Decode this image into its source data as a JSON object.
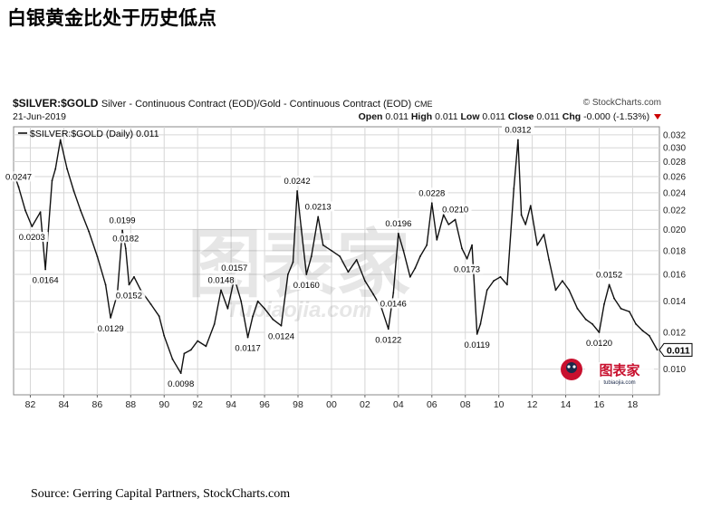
{
  "page_title": "白银黄金比处于历史低点",
  "header": {
    "symbol": "$SILVER:$GOLD",
    "description": "Silver - Continuous Contract (EOD)/Gold - Continuous Contract (EOD)",
    "exchange": "CME",
    "brand": "© StockCharts.com",
    "date": "21-Jun-2019",
    "open_label": "Open",
    "open": "0.011",
    "high_label": "High",
    "high": "0.011",
    "low_label": "Low",
    "low": "0.011",
    "close_label": "Close",
    "close": "0.011",
    "chg_label": "Chg",
    "chg": "-0.000 (-1.53%)"
  },
  "legend": "$SILVER:$GOLD (Daily) 0.011",
  "watermark": "图表家",
  "watermark_url": "Tubiaojia.com",
  "logo_url": "tubiaojia.com",
  "source": "Source: Gerring Capital Partners, StockCharts.com",
  "chart_data": {
    "type": "line",
    "title": "",
    "series": [
      {
        "name": "$SILVER:$GOLD (Daily)",
        "x": [
          1981.0,
          1981.3,
          1981.7,
          1982.1,
          1982.6,
          1982.9,
          1983.3,
          1983.5,
          1983.8,
          1984.2,
          1984.6,
          1985.0,
          1985.5,
          1986.0,
          1986.5,
          1986.8,
          1987.2,
          1987.5,
          1987.7,
          1987.9,
          1988.2,
          1988.6,
          1989.2,
          1989.7,
          1990.0,
          1990.5,
          1991.0,
          1991.2,
          1991.6,
          1992.0,
          1992.5,
          1993.0,
          1993.4,
          1993.8,
          1994.2,
          1994.6,
          1995.0,
          1995.3,
          1995.6,
          1996.0,
          1996.5,
          1997.0,
          1997.4,
          1997.7,
          1997.95,
          1998.2,
          1998.5,
          1998.8,
          1999.2,
          1999.5,
          2000.0,
          2000.5,
          2001.0,
          2001.5,
          2002.0,
          2002.5,
          2003.0,
          2003.4,
          2003.7,
          2004.0,
          2004.3,
          2004.7,
          2005.0,
          2005.3,
          2005.7,
          2006.0,
          2006.3,
          2006.7,
          2007.0,
          2007.4,
          2007.8,
          2008.1,
          2008.4,
          2008.7,
          2008.9,
          2009.3,
          2009.7,
          2010.1,
          2010.5,
          2010.9,
          2011.15,
          2011.35,
          2011.6,
          2011.9,
          2012.3,
          2012.7,
          2013.0,
          2013.4,
          2013.8,
          2014.2,
          2014.7,
          2015.2,
          2015.6,
          2016.0,
          2016.3,
          2016.6,
          2016.9,
          2017.3,
          2017.8,
          2018.2,
          2018.6,
          2019.0,
          2019.47
        ],
        "values": [
          0.0265,
          0.0247,
          0.022,
          0.0203,
          0.0218,
          0.0164,
          0.0255,
          0.027,
          0.0312,
          0.027,
          0.0242,
          0.022,
          0.0198,
          0.0175,
          0.0152,
          0.0129,
          0.0145,
          0.0199,
          0.0182,
          0.0152,
          0.0158,
          0.0148,
          0.0138,
          0.013,
          0.0118,
          0.0105,
          0.0098,
          0.0108,
          0.011,
          0.0115,
          0.0112,
          0.0125,
          0.0148,
          0.0135,
          0.0157,
          0.014,
          0.0117,
          0.013,
          0.014,
          0.0135,
          0.0128,
          0.0124,
          0.016,
          0.017,
          0.0242,
          0.02,
          0.016,
          0.0175,
          0.0213,
          0.0185,
          0.018,
          0.0175,
          0.0162,
          0.0172,
          0.0155,
          0.0145,
          0.0135,
          0.0122,
          0.0146,
          0.0196,
          0.018,
          0.0158,
          0.0165,
          0.0175,
          0.0185,
          0.0228,
          0.019,
          0.0215,
          0.0205,
          0.021,
          0.0182,
          0.0173,
          0.0185,
          0.0119,
          0.0125,
          0.0148,
          0.0155,
          0.0158,
          0.0152,
          0.0245,
          0.0312,
          0.0215,
          0.0205,
          0.0225,
          0.0185,
          0.0195,
          0.0172,
          0.0148,
          0.0155,
          0.0148,
          0.0135,
          0.0128,
          0.0125,
          0.012,
          0.0138,
          0.0152,
          0.0142,
          0.0135,
          0.0133,
          0.0125,
          0.0121,
          0.0118,
          0.011
        ]
      }
    ],
    "xlim": [
      1981.0,
      2019.6
    ],
    "ylim": [
      0.0088,
      0.0333
    ],
    "x_ticks": [
      1982,
      1984,
      1986,
      1988,
      1990,
      1992,
      1994,
      1996,
      1998,
      2000,
      2002,
      2004,
      2006,
      2008,
      2010,
      2012,
      2014,
      2016,
      2018
    ],
    "x_tick_labels": [
      "82",
      "84",
      "86",
      "88",
      "90",
      "92",
      "94",
      "96",
      "98",
      "00",
      "02",
      "04",
      "06",
      "08",
      "10",
      "12",
      "14",
      "16",
      "18"
    ],
    "y_ticks": [
      0.01,
      0.012,
      0.014,
      0.016,
      0.018,
      0.02,
      0.022,
      0.024,
      0.026,
      0.028,
      0.03,
      0.032
    ],
    "y_tick_labels": [
      "0.010",
      "0.012",
      "0.014",
      "0.016",
      "0.018",
      "0.020",
      "0.022",
      "0.024",
      "0.026",
      "0.028",
      "0.030",
      "0.032"
    ],
    "scale": "log",
    "grid": true,
    "last_value_label": "0.011",
    "annotations": [
      {
        "x": 1981.3,
        "y": 0.0247,
        "text": "0.0247",
        "pos": "above"
      },
      {
        "x": 1982.1,
        "y": 0.0203,
        "text": "0.0203",
        "pos": "below"
      },
      {
        "x": 1982.9,
        "y": 0.0164,
        "text": "0.0164",
        "pos": "below"
      },
      {
        "x": 1986.8,
        "y": 0.0129,
        "text": "0.0129",
        "pos": "below"
      },
      {
        "x": 1987.5,
        "y": 0.0199,
        "text": "0.0199",
        "pos": "above"
      },
      {
        "x": 1987.7,
        "y": 0.0182,
        "text": "0.0182",
        "pos": "above"
      },
      {
        "x": 1987.9,
        "y": 0.0152,
        "text": "0.0152",
        "pos": "below"
      },
      {
        "x": 1991.0,
        "y": 0.0098,
        "text": "0.0098",
        "pos": "below"
      },
      {
        "x": 1993.4,
        "y": 0.0148,
        "text": "0.0148",
        "pos": "above"
      },
      {
        "x": 1994.2,
        "y": 0.0157,
        "text": "0.0157",
        "pos": "above"
      },
      {
        "x": 1995.0,
        "y": 0.0117,
        "text": "0.0117",
        "pos": "below"
      },
      {
        "x": 1997.0,
        "y": 0.0124,
        "text": "0.0124",
        "pos": "below"
      },
      {
        "x": 1997.95,
        "y": 0.0242,
        "text": "0.0242",
        "pos": "above"
      },
      {
        "x": 1998.5,
        "y": 0.016,
        "text": "0.0160",
        "pos": "below"
      },
      {
        "x": 1999.2,
        "y": 0.0213,
        "text": "0.0213",
        "pos": "above"
      },
      {
        "x": 2003.4,
        "y": 0.0122,
        "text": "0.0122",
        "pos": "below"
      },
      {
        "x": 2003.7,
        "y": 0.0146,
        "text": "0.0146",
        "pos": "below"
      },
      {
        "x": 2004.0,
        "y": 0.0196,
        "text": "0.0196",
        "pos": "above"
      },
      {
        "x": 2006.0,
        "y": 0.0228,
        "text": "0.0228",
        "pos": "above"
      },
      {
        "x": 2007.4,
        "y": 0.021,
        "text": "0.0210",
        "pos": "above"
      },
      {
        "x": 2008.1,
        "y": 0.0173,
        "text": "0.0173",
        "pos": "below"
      },
      {
        "x": 2008.7,
        "y": 0.0119,
        "text": "0.0119",
        "pos": "below"
      },
      {
        "x": 2011.15,
        "y": 0.0312,
        "text": "0.0312",
        "pos": "above"
      },
      {
        "x": 2016.0,
        "y": 0.012,
        "text": "0.0120",
        "pos": "below"
      },
      {
        "x": 2016.6,
        "y": 0.0152,
        "text": "0.0152",
        "pos": "above"
      }
    ]
  }
}
